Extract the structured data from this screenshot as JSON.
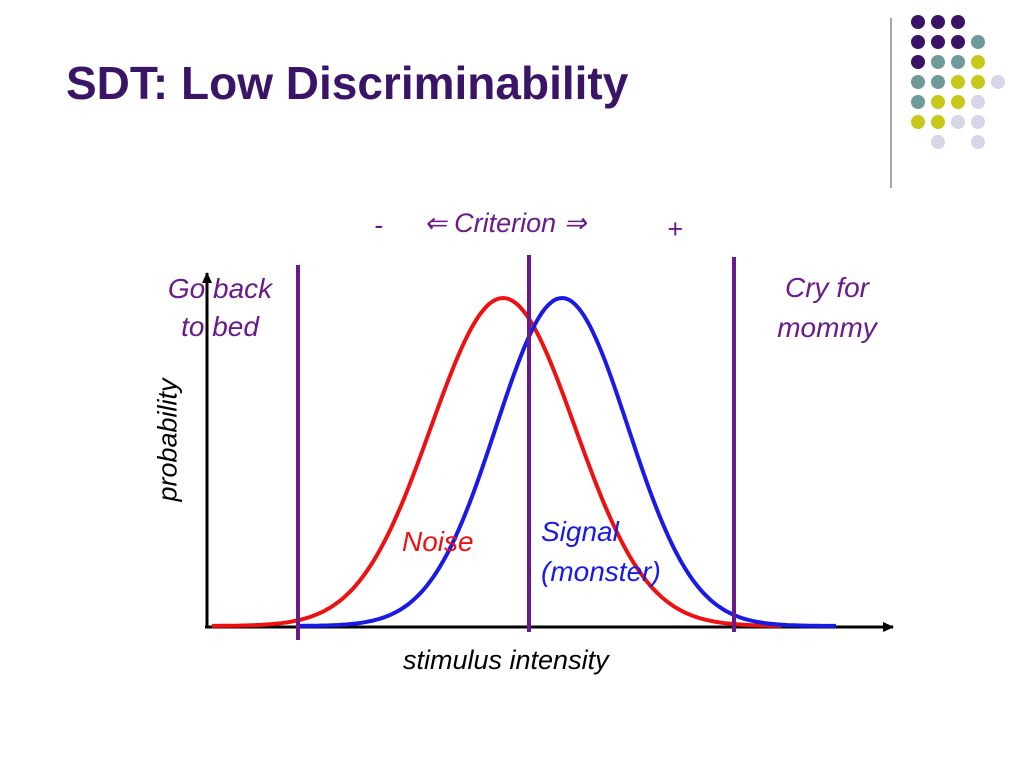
{
  "slide": {
    "title": "SDT: Low Discriminability"
  },
  "decoration": {
    "dot_colors": [
      "#3a1466",
      "#6f9a9a",
      "#c8c81a",
      "#d6d6e6"
    ]
  },
  "diagram": {
    "criterion": {
      "minus": "-",
      "label": "⇐ Criterion ⇒",
      "plus": "+"
    },
    "left_response": [
      "Go back",
      "to bed"
    ],
    "right_response": [
      "Cry for",
      "mommy"
    ],
    "noise_label": "Noise",
    "signal_label": [
      "Signal",
      "(monster)"
    ],
    "y_axis_label": "probability",
    "x_axis_label": "stimulus intensity",
    "colors": {
      "noise": "#ee1111",
      "signal": "#1a1ae6",
      "criterion": "#6a1a8a",
      "axis": "#000000"
    }
  }
}
